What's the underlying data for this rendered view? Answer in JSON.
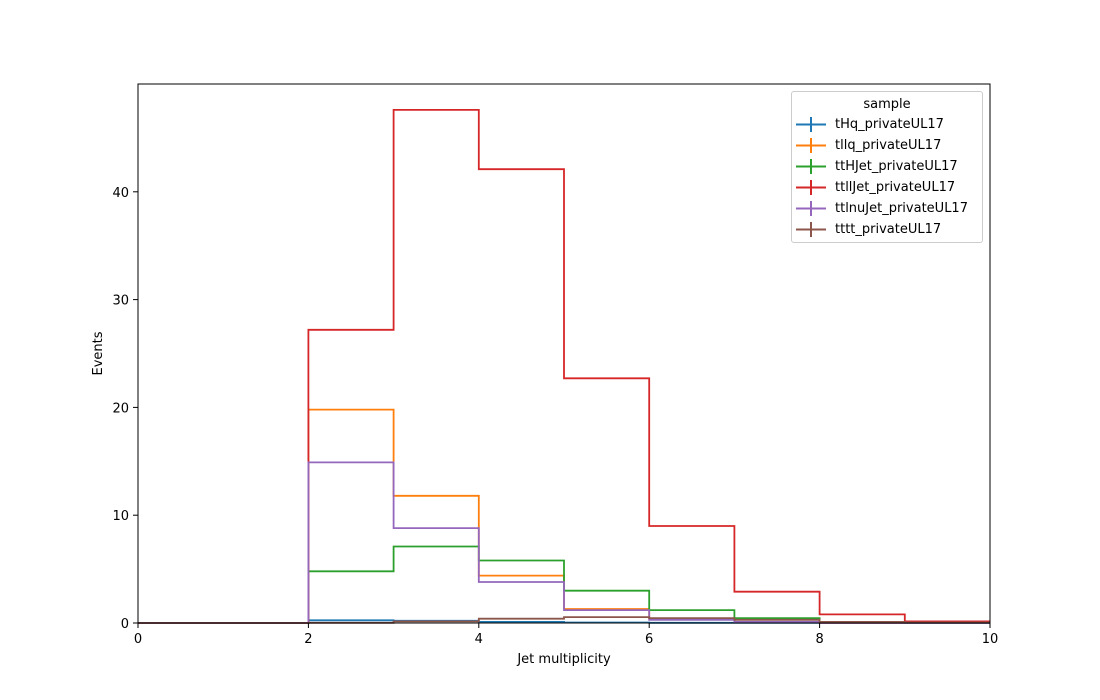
{
  "chart_data": {
    "type": "line",
    "drawstyle": "step-histogram",
    "xlabel": "Jet multiplicity",
    "ylabel": "Events",
    "xlim": [
      0,
      10
    ],
    "ylim": [
      0,
      50
    ],
    "x_ticks": [
      "0",
      "2",
      "4",
      "6",
      "8",
      "10"
    ],
    "y_ticks": [
      "0",
      "10",
      "20",
      "30",
      "40"
    ],
    "bin_edges": [
      0,
      1,
      2,
      3,
      4,
      5,
      6,
      7,
      8,
      9,
      10
    ],
    "grid": false,
    "legend_title": "sample",
    "legend_position": "top-right",
    "series": [
      {
        "name": "tHq_privateUL17",
        "color": "#1f77b4",
        "values": [
          0,
          0,
          0.25,
          0.2,
          0.1,
          0.05,
          0.02,
          0.01,
          0,
          0
        ]
      },
      {
        "name": "tllq_privateUL17",
        "color": "#ff7f0e",
        "values": [
          0,
          0,
          19.8,
          11.8,
          4.4,
          1.3,
          0.4,
          0.1,
          0,
          0
        ]
      },
      {
        "name": "ttHJet_privateUL17",
        "color": "#2ca02c",
        "values": [
          0,
          0,
          4.8,
          7.1,
          5.8,
          3.0,
          1.2,
          0.45,
          0.1,
          0
        ]
      },
      {
        "name": "ttllJet_privateUL17",
        "color": "#d62728",
        "values": [
          0,
          0,
          27.2,
          47.6,
          42.1,
          22.7,
          9.0,
          2.9,
          0.8,
          0.15
        ]
      },
      {
        "name": "ttlnuJet_privateUL17",
        "color": "#9467bd",
        "values": [
          0,
          0,
          14.9,
          8.8,
          3.8,
          1.2,
          0.3,
          0.1,
          0,
          0
        ]
      },
      {
        "name": "tttt_privateUL17",
        "color": "#8c564b",
        "values": [
          0,
          0,
          0.02,
          0.15,
          0.4,
          0.55,
          0.45,
          0.3,
          0.1,
          0.05
        ]
      }
    ]
  }
}
